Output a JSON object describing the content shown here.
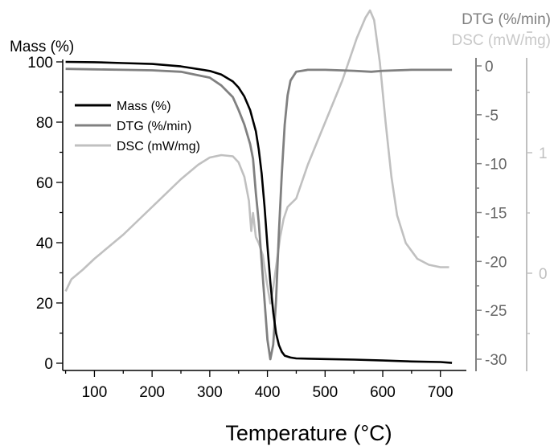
{
  "chart_data": {
    "type": "line",
    "xlabel": "Temperature (°C)",
    "xlim": [
      45,
      745
    ],
    "x_ticks": [
      100,
      200,
      300,
      400,
      500,
      600,
      700
    ],
    "axes": {
      "mass": {
        "label": "Mass (%)",
        "lim": [
          0,
          100
        ],
        "ticks": [
          0,
          20,
          40,
          60,
          80,
          100
        ],
        "color": "#000000"
      },
      "dtg": {
        "label": "DTG (%/min)",
        "lim": [
          -31,
          0
        ],
        "ticks": [
          0,
          -5,
          -10,
          -15,
          -20,
          -25,
          -30
        ],
        "color": "#808080"
      },
      "dsc": {
        "label": "DSC (mW/mg)",
        "lim": [
          -0.55,
          2.2
        ],
        "ticks": [
          1,
          0
        ],
        "color": "#c0c0c0"
      }
    },
    "legend": {
      "position": "upper-left"
    },
    "series": [
      {
        "name": "Mass (%)",
        "axis": "mass",
        "color": "#000000",
        "points": [
          [
            50,
            100
          ],
          [
            100,
            99.9
          ],
          [
            150,
            99.6
          ],
          [
            200,
            99.3
          ],
          [
            250,
            98.5
          ],
          [
            300,
            97
          ],
          [
            320,
            95.8
          ],
          [
            340,
            93.5
          ],
          [
            350,
            91.5
          ],
          [
            360,
            88.5
          ],
          [
            370,
            84
          ],
          [
            380,
            77
          ],
          [
            385,
            71
          ],
          [
            390,
            63
          ],
          [
            395,
            52
          ],
          [
            400,
            39
          ],
          [
            405,
            27
          ],
          [
            410,
            17
          ],
          [
            415,
            10
          ],
          [
            420,
            6
          ],
          [
            425,
            3.8
          ],
          [
            430,
            2.5
          ],
          [
            440,
            1.9
          ],
          [
            450,
            1.6
          ],
          [
            500,
            1.4
          ],
          [
            550,
            1.2
          ],
          [
            600,
            0.9
          ],
          [
            650,
            0.6
          ],
          [
            700,
            0.4
          ],
          [
            720,
            0.1
          ]
        ]
      },
      {
        "name": "DTG (%/min)",
        "axis": "dtg",
        "color": "#808080",
        "points": [
          [
            50,
            -0.3
          ],
          [
            100,
            -0.35
          ],
          [
            150,
            -0.4
          ],
          [
            200,
            -0.45
          ],
          [
            250,
            -0.6
          ],
          [
            300,
            -1.2
          ],
          [
            320,
            -2
          ],
          [
            340,
            -3.2
          ],
          [
            350,
            -4.5
          ],
          [
            360,
            -6
          ],
          [
            370,
            -8
          ],
          [
            375,
            -9.5
          ],
          [
            380,
            -13
          ],
          [
            385,
            -16
          ],
          [
            390,
            -20
          ],
          [
            395,
            -24
          ],
          [
            400,
            -28
          ],
          [
            405,
            -30
          ],
          [
            410,
            -28.5
          ],
          [
            415,
            -24
          ],
          [
            420,
            -17
          ],
          [
            425,
            -11
          ],
          [
            430,
            -6
          ],
          [
            435,
            -3
          ],
          [
            440,
            -1.5
          ],
          [
            450,
            -0.6
          ],
          [
            470,
            -0.4
          ],
          [
            500,
            -0.4
          ],
          [
            550,
            -0.5
          ],
          [
            580,
            -0.6
          ],
          [
            600,
            -0.5
          ],
          [
            650,
            -0.4
          ],
          [
            720,
            -0.4
          ]
        ]
      },
      {
        "name": "DSC (mW/mg)",
        "axis": "dsc",
        "color": "#c0c0c0",
        "points": [
          [
            50,
            -0.15
          ],
          [
            60,
            -0.05
          ],
          [
            80,
            0.03
          ],
          [
            100,
            0.12
          ],
          [
            150,
            0.32
          ],
          [
            200,
            0.55
          ],
          [
            250,
            0.78
          ],
          [
            280,
            0.9
          ],
          [
            300,
            0.96
          ],
          [
            320,
            0.98
          ],
          [
            340,
            0.97
          ],
          [
            350,
            0.92
          ],
          [
            360,
            0.8
          ],
          [
            368,
            0.6
          ],
          [
            372,
            0.35
          ],
          [
            375,
            0.5
          ],
          [
            380,
            0.3
          ],
          [
            385,
            0.25
          ],
          [
            392,
            0.15
          ],
          [
            398,
            -0.05
          ],
          [
            405,
            -0.25
          ],
          [
            410,
            -0.12
          ],
          [
            415,
            0.05
          ],
          [
            422,
            0.3
          ],
          [
            428,
            0.45
          ],
          [
            435,
            0.55
          ],
          [
            450,
            0.62
          ],
          [
            470,
            0.9
          ],
          [
            500,
            1.25
          ],
          [
            530,
            1.6
          ],
          [
            555,
            1.95
          ],
          [
            570,
            2.12
          ],
          [
            578,
            2.18
          ],
          [
            585,
            2.1
          ],
          [
            595,
            1.75
          ],
          [
            605,
            1.25
          ],
          [
            615,
            0.8
          ],
          [
            625,
            0.48
          ],
          [
            640,
            0.25
          ],
          [
            660,
            0.12
          ],
          [
            680,
            0.07
          ],
          [
            700,
            0.05
          ],
          [
            715,
            0.05
          ]
        ]
      }
    ]
  }
}
